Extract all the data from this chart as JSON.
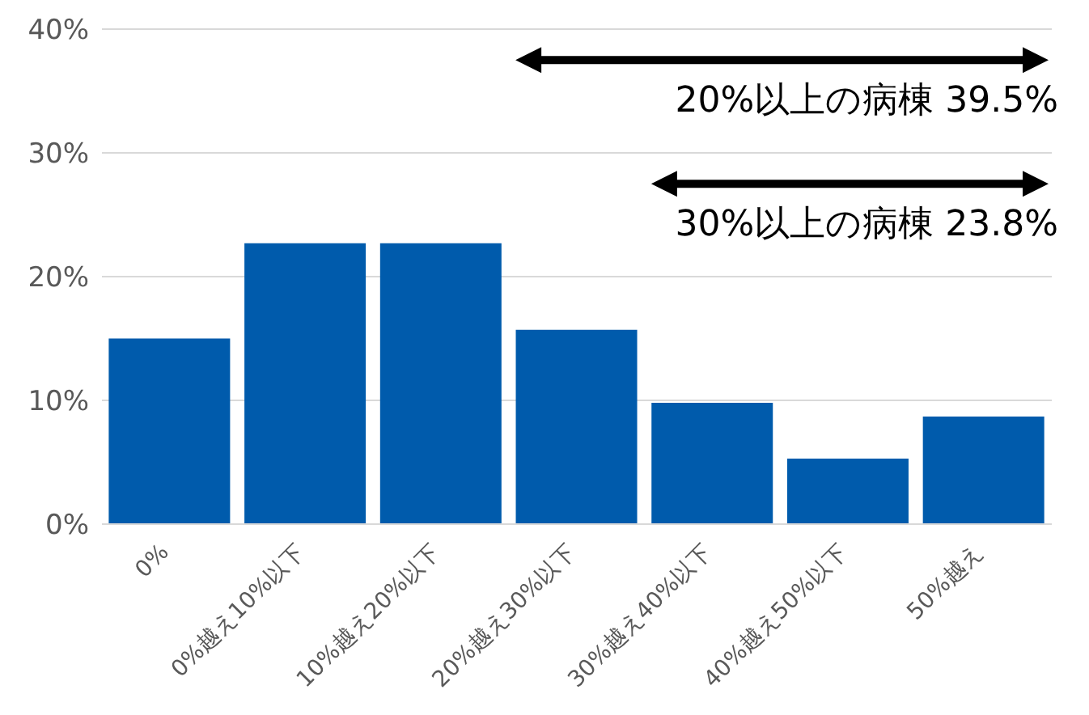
{
  "chart_data": {
    "type": "bar",
    "categories": [
      "0%",
      "0%越え10%以下",
      "10%越え20%以下",
      "20%越え30%以下",
      "30%越え40%以下",
      "40%越え50%以下",
      "50%越え"
    ],
    "values": [
      15.0,
      22.7,
      22.7,
      15.7,
      9.8,
      5.3,
      8.7
    ],
    "color": "#005bac",
    "ylim": [
      0,
      40
    ],
    "yticks": [
      {
        "value": 0,
        "label": "0%"
      },
      {
        "value": 10,
        "label": "10%"
      },
      {
        "value": 20,
        "label": "20%"
      },
      {
        "value": 30,
        "label": "30%"
      },
      {
        "value": 40,
        "label": "40%"
      }
    ],
    "grid": "y",
    "annotations": [
      "20%以上の病棟 39.5%",
      "30%以上の病棟 23.8%"
    ]
  }
}
